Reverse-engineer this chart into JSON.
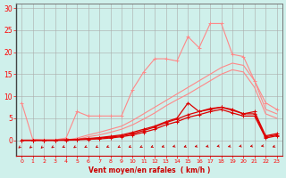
{
  "background_color": "#cff0eb",
  "grid_color": "#aaaaaa",
  "x_values": [
    0,
    1,
    2,
    3,
    4,
    5,
    6,
    7,
    8,
    9,
    10,
    11,
    12,
    13,
    14,
    15,
    16,
    17,
    18,
    19,
    20,
    21,
    22,
    23
  ],
  "series": [
    {
      "color": "#ff8888",
      "linewidth": 0.8,
      "marker": "+",
      "markersize": 3,
      "y": [
        8.5,
        0.2,
        0.1,
        0.1,
        0.5,
        6.5,
        5.5,
        5.5,
        5.5,
        5.5,
        11.5,
        15.5,
        18.5,
        18.5,
        18.0,
        23.5,
        21.0,
        26.5,
        26.5,
        19.5,
        19.0,
        13.5,
        8.5,
        7.0
      ]
    },
    {
      "color": "#ff8888",
      "linewidth": 0.8,
      "marker": null,
      "y": [
        0,
        0,
        0,
        0,
        0,
        0.5,
        1.2,
        1.8,
        2.5,
        3.2,
        4.5,
        6.0,
        7.5,
        9.0,
        10.5,
        12.0,
        13.5,
        15.0,
        16.5,
        17.5,
        17.0,
        13.5,
        7.0,
        6.0
      ]
    },
    {
      "color": "#ff8888",
      "linewidth": 0.8,
      "marker": null,
      "y": [
        0,
        0,
        0,
        0,
        0,
        0.2,
        0.8,
        1.2,
        1.8,
        2.5,
        3.5,
        4.8,
        6.2,
        7.8,
        9.2,
        10.5,
        12.0,
        13.5,
        15.0,
        16.0,
        15.5,
        12.0,
        6.0,
        5.0
      ]
    },
    {
      "color": "#dd0000",
      "linewidth": 0.9,
      "marker": "+",
      "markersize": 3,
      "y": [
        0,
        0,
        0,
        0,
        0.1,
        0.2,
        0.4,
        0.6,
        0.9,
        1.2,
        1.8,
        2.5,
        3.2,
        4.2,
        5.0,
        8.5,
        6.5,
        7.0,
        7.5,
        7.0,
        6.0,
        6.5,
        1.0,
        1.5
      ]
    },
    {
      "color": "#dd0000",
      "linewidth": 0.9,
      "marker": "+",
      "markersize": 3,
      "y": [
        0,
        0,
        0,
        0,
        0.1,
        0.2,
        0.3,
        0.5,
        0.7,
        1.0,
        1.5,
        2.2,
        3.0,
        4.0,
        4.8,
        5.8,
        6.5,
        7.2,
        7.5,
        6.8,
        6.0,
        6.0,
        0.8,
        1.2
      ]
    },
    {
      "color": "#dd0000",
      "linewidth": 0.9,
      "marker": "+",
      "markersize": 3,
      "y": [
        0,
        0,
        0,
        0,
        0,
        0.1,
        0.2,
        0.3,
        0.5,
        0.8,
        1.2,
        1.8,
        2.5,
        3.5,
        4.2,
        5.2,
        5.8,
        6.5,
        7.0,
        6.2,
        5.5,
        5.5,
        0.5,
        1.0
      ]
    }
  ],
  "xlabel": "Vent moyen/en rafales  ( km/h )",
  "xlim": [
    -0.5,
    23.5
  ],
  "ylim": [
    -3.5,
    31
  ],
  "yticks": [
    0,
    5,
    10,
    15,
    20,
    25,
    30
  ],
  "xticks": [
    0,
    1,
    2,
    3,
    4,
    5,
    6,
    7,
    8,
    9,
    10,
    11,
    12,
    13,
    14,
    15,
    16,
    17,
    18,
    19,
    20,
    21,
    22,
    23
  ],
  "tick_color": "#ff0000",
  "label_color": "#cc0000",
  "arrow_color": "#cc0000",
  "axis_linewidth": 0.7
}
